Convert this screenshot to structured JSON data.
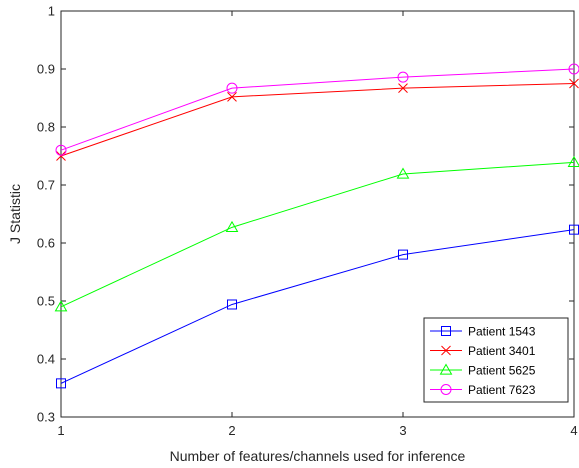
{
  "chart_data": {
    "type": "line",
    "title": "",
    "xlabel": "Number of features/channels used for inference",
    "ylabel": "J Statistic",
    "x": [
      1,
      2,
      3,
      4
    ],
    "xlim": [
      1,
      4
    ],
    "ylim": [
      0.3,
      1
    ],
    "xticks": [
      "1",
      "2",
      "3",
      "4"
    ],
    "yticks": [
      "0.3",
      "0.4",
      "0.5",
      "0.6",
      "0.7",
      "0.8",
      "0.9",
      "1"
    ],
    "grid": false,
    "legend_position": "bottom-right",
    "series": [
      {
        "name": "Patient 1543",
        "values": [
          0.358,
          0.494,
          0.58,
          0.623
        ],
        "color": "#0000ff",
        "marker": "square"
      },
      {
        "name": "Patient 3401",
        "values": [
          0.75,
          0.852,
          0.867,
          0.875
        ],
        "color": "#ff0000",
        "marker": "x"
      },
      {
        "name": "Patient 5625",
        "values": [
          0.49,
          0.627,
          0.719,
          0.739
        ],
        "color": "#00ff00",
        "marker": "triangle"
      },
      {
        "name": "Patient 7623",
        "values": [
          0.76,
          0.867,
          0.886,
          0.9
        ],
        "color": "#ff00ff",
        "marker": "circle"
      }
    ]
  }
}
